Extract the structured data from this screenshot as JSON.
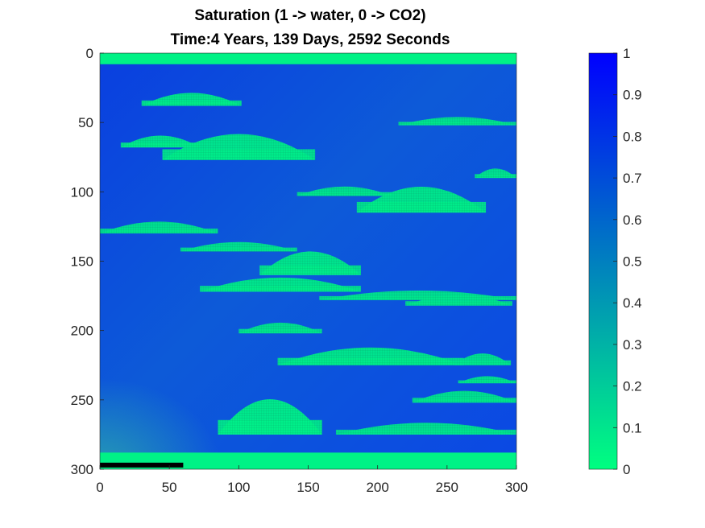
{
  "chart_data": {
    "type": "heatmap",
    "title": "Saturation (1 -> water, 0 -> CO2)",
    "subtitle": "Time:4 Years, 139 Days, 2592 Seconds",
    "xlabel": "",
    "ylabel": "",
    "xlim": [
      0,
      300
    ],
    "ylim": [
      0,
      300
    ],
    "y_reversed": true,
    "x_ticks": [
      "0",
      "50",
      "100",
      "150",
      "200",
      "250",
      "300"
    ],
    "y_ticks": [
      "0",
      "50",
      "100",
      "150",
      "200",
      "250",
      "300"
    ],
    "colorbar": {
      "range": [
        0,
        1
      ],
      "ticks": [
        "0",
        "0.1",
        "0.2",
        "0.3",
        "0.4",
        "0.5",
        "0.6",
        "0.7",
        "0.8",
        "0.9",
        "1"
      ],
      "colors": [
        "#00ff80",
        "#0000ff"
      ]
    },
    "features": {
      "background_saturation": 0.7,
      "top_band": {
        "y": [
          0,
          8
        ],
        "saturation": 0.05
      },
      "bottom_band": {
        "y": [
          288,
          300
        ],
        "saturation": 0.05
      },
      "injection_well": {
        "x": [
          0,
          60
        ],
        "y": 297,
        "color": "#000000"
      },
      "plumes": [
        {
          "x": [
            30,
            102
          ],
          "y": [
            27,
            38
          ],
          "saturation": 0.08
        },
        {
          "x": [
            15,
            72
          ],
          "y": [
            58,
            68
          ],
          "saturation": 0.08
        },
        {
          "x": [
            45,
            155
          ],
          "y": [
            55,
            77
          ],
          "saturation": 0.08
        },
        {
          "x": [
            215,
            300
          ],
          "y": [
            45,
            52
          ],
          "saturation": 0.1
        },
        {
          "x": [
            270,
            300
          ],
          "y": [
            82,
            90
          ],
          "saturation": 0.1
        },
        {
          "x": [
            142,
            210
          ],
          "y": [
            95,
            103
          ],
          "saturation": 0.1
        },
        {
          "x": [
            185,
            278
          ],
          "y": [
            93,
            115
          ],
          "saturation": 0.08
        },
        {
          "x": [
            0,
            85
          ],
          "y": [
            120,
            130
          ],
          "saturation": 0.1
        },
        {
          "x": [
            58,
            142
          ],
          "y": [
            135,
            143
          ],
          "saturation": 0.1
        },
        {
          "x": [
            115,
            188
          ],
          "y": [
            140,
            160
          ],
          "saturation": 0.08
        },
        {
          "x": [
            72,
            188
          ],
          "y": [
            160,
            172
          ],
          "saturation": 0.08
        },
        {
          "x": [
            158,
            300
          ],
          "y": [
            170,
            178
          ],
          "saturation": 0.1
        },
        {
          "x": [
            220,
            297
          ],
          "y": [
            173,
            182
          ],
          "saturation": 0.1
        },
        {
          "x": [
            100,
            160
          ],
          "y": [
            193,
            202
          ],
          "saturation": 0.1
        },
        {
          "x": [
            128,
            262
          ],
          "y": [
            210,
            225
          ],
          "saturation": 0.08
        },
        {
          "x": [
            255,
            296
          ],
          "y": [
            215,
            225
          ],
          "saturation": 0.1
        },
        {
          "x": [
            258,
            300
          ],
          "y": [
            232,
            238
          ],
          "saturation": 0.1
        },
        {
          "x": [
            225,
            300
          ],
          "y": [
            242,
            252
          ],
          "saturation": 0.1
        },
        {
          "x": [
            85,
            160
          ],
          "y": [
            245,
            275
          ],
          "saturation": 0.06
        },
        {
          "x": [
            170,
            300
          ],
          "y": [
            265,
            275
          ],
          "saturation": 0.1
        }
      ]
    }
  }
}
